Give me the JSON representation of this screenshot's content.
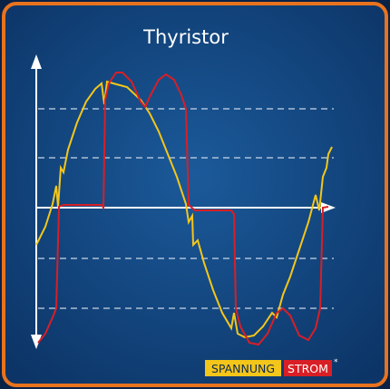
{
  "header": {
    "title": "Thyristor"
  },
  "legend": {
    "items": [
      "SPANNUNG",
      "STROM"
    ],
    "footnote_mark": "*"
  }
}
